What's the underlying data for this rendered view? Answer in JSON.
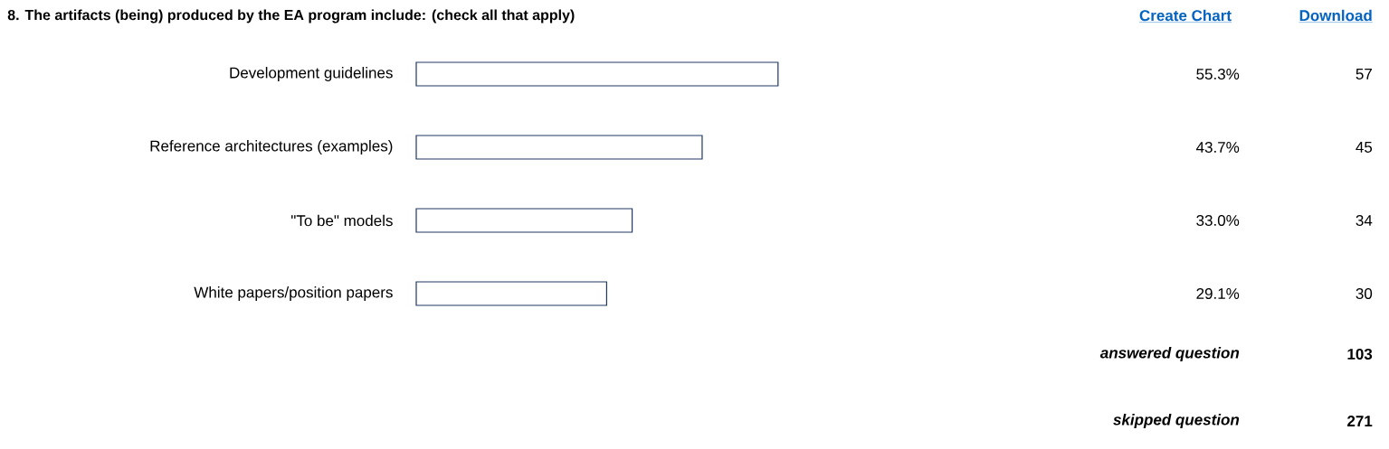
{
  "chart_data": {
    "type": "bar",
    "orientation": "horizontal",
    "title": "8. The artifacts (being) produced by the EA program include: (check all that apply)",
    "categories": [
      "Development guidelines",
      "Reference architectures (examples)",
      "\"To be\" models",
      "White papers/position papers"
    ],
    "values": [
      55.3,
      43.7,
      33.0,
      29.1
    ],
    "value_labels": [
      "55.3%",
      "43.7%",
      "33.0%",
      "29.1%"
    ],
    "color": "#1f3864",
    "tick_labels": "y",
    "annotations": [
      "57",
      "45",
      "34",
      "30",
      "Create Chart",
      "Download",
      "answered question",
      "103",
      "skipped question",
      "271"
    ]
  }
}
